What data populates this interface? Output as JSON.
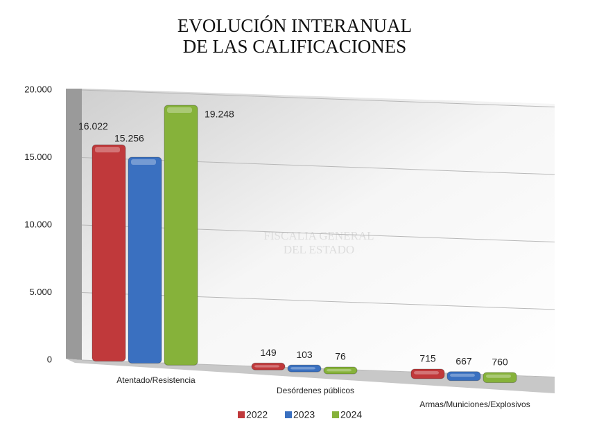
{
  "chart_data": {
    "type": "bar",
    "title": [
      "EVOLUCIÓN INTERANUAL",
      "DE LAS CALIFICACIONES"
    ],
    "watermark": [
      "FISCALIA GENERAL",
      "DEL ESTADO"
    ],
    "categories": [
      "Atentado/Resistencia",
      "Desórdenes públicos",
      "Armas/Municiones/Explosivos"
    ],
    "series": [
      {
        "name": "2022",
        "color": "#c0393b",
        "values": [
          16022,
          149,
          715
        ],
        "value_labels": [
          "16.022",
          "149",
          "715"
        ]
      },
      {
        "name": "2023",
        "color": "#3a70c0",
        "values": [
          15256,
          103,
          667
        ],
        "value_labels": [
          "15.256",
          "103",
          "667"
        ]
      },
      {
        "name": "2024",
        "color": "#86b23a",
        "values": [
          19248,
          76,
          760
        ],
        "value_labels": [
          "19.248",
          "76",
          "760"
        ]
      }
    ],
    "ylim": [
      0,
      20000
    ],
    "yticks": [
      0,
      {
        "value": 5000,
        "label": "5.000"
      },
      {
        "value": 10000,
        "label": "10.000"
      },
      {
        "value": 15000,
        "label": "15.000"
      },
      {
        "value": 20000,
        "label": "20.000"
      }
    ],
    "grid": true,
    "legend": "bottom"
  }
}
